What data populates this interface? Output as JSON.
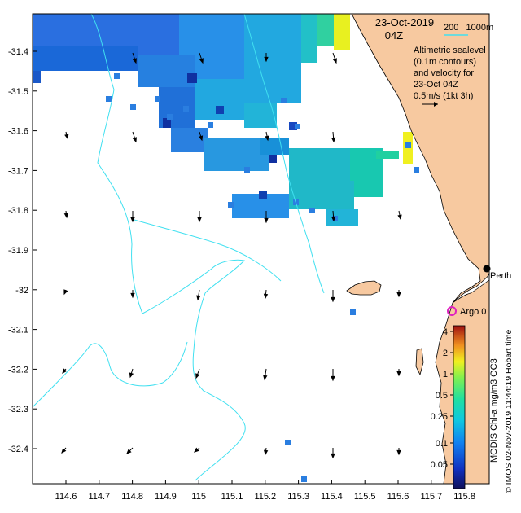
{
  "map": {
    "title_date": "23-Oct-2019",
    "title_time": "04Z",
    "legend_contours": "200   1000m",
    "info_lines": [
      "Altimetric sealevel",
      "(0.1m contours)",
      "and velocity for",
      "23-Oct 04Z",
      "0.5m/s (1kt 3h)"
    ],
    "longitude_ticks": [
      "114.6",
      "114.7",
      "114.8",
      "114.9",
      "115",
      "115.1",
      "115.2",
      "115.3",
      "115.4",
      "115.5",
      "115.6",
      "115.7",
      "115.8"
    ],
    "latitude_ticks": [
      "-31.4",
      "-31.5",
      "-31.6",
      "-31.7",
      "-31.8",
      "-31.9",
      "-32",
      "-32.1",
      "-32.2",
      "-32.3",
      "-32.4"
    ],
    "places": [
      {
        "name": "Perth",
        "lon": 115.86,
        "lat": -31.955
      },
      {
        "name": "Argo 0",
        "lon": 115.75,
        "lat": -32.07
      }
    ],
    "colorbar": {
      "ticks": [
        "4",
        "2",
        "1",
        "0.5",
        "0.25",
        "0.1",
        "0.05"
      ],
      "label": "MODIS Chl-a mg/m3 OC3"
    },
    "credit": "© IMOS 02-Nov-2019 11:44:19 Hobart time",
    "colors": {
      "land": "#f7c9a0",
      "contour": "#40e0f0",
      "argo": "#e020c0",
      "ocean": "#ffffff"
    }
  }
}
